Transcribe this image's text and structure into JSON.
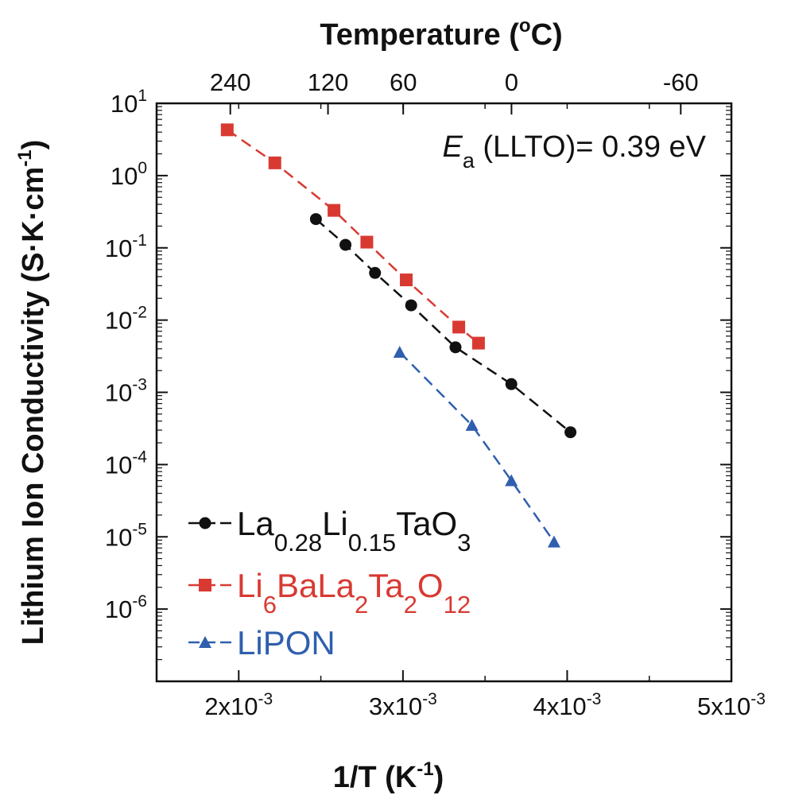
{
  "chart_data": {
    "type": "scatter",
    "title": "",
    "xlabel": {
      "base": "1/T (K",
      "sup": "-1",
      "tail": ")"
    },
    "ylabel": {
      "base": "Lithium Ion Conductivity (S·K·cm",
      "sup": "-1",
      "tail": ")"
    },
    "top_xlabel": {
      "base": "Temperature (",
      "sup": "o",
      "tail": "C)"
    },
    "xlim": [
      0.0015,
      0.005
    ],
    "ylim_log10": [
      -7,
      1
    ],
    "x_scale": "linear",
    "y_scale": "log",
    "x_ticks": [
      {
        "value": 0.002,
        "mant": "2x10",
        "exp": "-3"
      },
      {
        "value": 0.003,
        "mant": "3x10",
        "exp": "-3"
      },
      {
        "value": 0.004,
        "mant": "4x10",
        "exp": "-3"
      },
      {
        "value": 0.005,
        "mant": "5x10",
        "exp": "-3"
      }
    ],
    "y_ticks": [
      {
        "log": 1,
        "mant": "10",
        "exp": "1"
      },
      {
        "log": 0,
        "mant": "10",
        "exp": "0"
      },
      {
        "log": -1,
        "mant": "10",
        "exp": "-1"
      },
      {
        "log": -2,
        "mant": "10",
        "exp": "-2"
      },
      {
        "log": -3,
        "mant": "10",
        "exp": "-3"
      },
      {
        "log": -4,
        "mant": "10",
        "exp": "-4"
      },
      {
        "log": -5,
        "mant": "10",
        "exp": "-5"
      },
      {
        "log": -6,
        "mant": "10",
        "exp": "-6"
      }
    ],
    "top_ticks": [
      {
        "label": "240",
        "temp_c": 240
      },
      {
        "label": "120",
        "temp_c": 120
      },
      {
        "label": "60",
        "temp_c": 60
      },
      {
        "label": "0",
        "temp_c": 0
      },
      {
        "label": "-60",
        "temp_c": -60
      }
    ],
    "annotation": {
      "E": "E",
      "sub": "a",
      "text": " (LLTO)= 0.39 eV"
    },
    "series": [
      {
        "name": "La0.28Li0.15TaO3",
        "color": "#111111",
        "marker": "circle",
        "legend": [
          {
            "t": "La",
            "s": ""
          },
          {
            "t": "0.28",
            "s": "sub"
          },
          {
            "t": "Li",
            "s": ""
          },
          {
            "t": "0.15",
            "s": "sub"
          },
          {
            "t": "TaO",
            "s": ""
          },
          {
            "t": "3",
            "s": "sub"
          }
        ],
        "x": [
          0.00247,
          0.00265,
          0.00283,
          0.00305,
          0.00332,
          0.00366,
          0.00402
        ],
        "y": [
          0.25,
          0.11,
          0.045,
          0.016,
          0.0042,
          0.0013,
          0.00028
        ]
      },
      {
        "name": "Li6BaLa2Ta2O12",
        "color": "#d83a32",
        "marker": "square",
        "legend": [
          {
            "t": "Li",
            "s": ""
          },
          {
            "t": "6",
            "s": "sub"
          },
          {
            "t": "BaLa",
            "s": ""
          },
          {
            "t": "2",
            "s": "sub"
          },
          {
            "t": "Ta",
            "s": ""
          },
          {
            "t": "2",
            "s": "sub"
          },
          {
            "t": "O",
            "s": ""
          },
          {
            "t": "12",
            "s": "sub"
          }
        ],
        "x": [
          0.00193,
          0.00222,
          0.00258,
          0.00278,
          0.00302,
          0.00334,
          0.00346
        ],
        "y": [
          4.3,
          1.5,
          0.33,
          0.12,
          0.036,
          0.008,
          0.0048
        ]
      },
      {
        "name": "LiPON",
        "color": "#2f5fae",
        "marker": "triangle",
        "legend": [
          {
            "t": "LiPON",
            "s": ""
          }
        ],
        "x": [
          0.00298,
          0.00342,
          0.00366,
          0.00392
        ],
        "y": [
          0.0036,
          0.00035,
          6e-05,
          8.5e-06
        ]
      }
    ]
  }
}
